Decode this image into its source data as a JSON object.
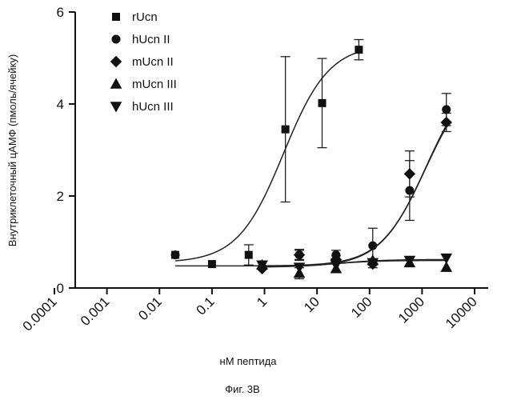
{
  "chart_data": {
    "type": "scatter",
    "xlabel": "нМ пептида",
    "ylabel": "Внутриклеточный цАМФ (пмоль/ячейку)",
    "caption": "Фиг. 3B",
    "x_scale": "log",
    "xlim": [
      0.0001,
      10000
    ],
    "ylim": [
      0,
      6
    ],
    "x_ticks": [
      "0.0001",
      "0.001",
      "0.01",
      "0.1",
      "1",
      "10",
      "100",
      "1000",
      "10000"
    ],
    "y_ticks": [
      "0",
      "2",
      "4",
      "6"
    ],
    "grid": false,
    "legend_position": "top-left",
    "series": [
      {
        "name": "rUcn",
        "marker": "square",
        "points": [
          {
            "x": 0.02,
            "y": 0.72,
            "err": 0
          },
          {
            "x": 0.1,
            "y": 0.52,
            "err": 0
          },
          {
            "x": 0.5,
            "y": 0.72,
            "err": 0.22
          },
          {
            "x": 2.5,
            "y": 3.45,
            "err": 1.58
          },
          {
            "x": 12.5,
            "y": 4.02,
            "err": 0.97
          },
          {
            "x": 62.5,
            "y": 5.18,
            "err": 0.22
          }
        ],
        "curve": {
          "bottom": 0.55,
          "top": 5.3,
          "ec50": 2.3,
          "hill": 1.0
        }
      },
      {
        "name": "hUcn II",
        "marker": "circle",
        "points": [
          {
            "x": 0.02,
            "y": 0.72,
            "err": 0
          },
          {
            "x": 0.9,
            "y": 0.45,
            "err": 0
          },
          {
            "x": 4.6,
            "y": 0.72,
            "err": 0.1
          },
          {
            "x": 23,
            "y": 0.72,
            "err": 0.1
          },
          {
            "x": 115,
            "y": 0.92,
            "err": 0.38
          },
          {
            "x": 580,
            "y": 2.12,
            "err": 0.65
          },
          {
            "x": 2900,
            "y": 3.88,
            "err": 0.35
          }
        ],
        "curve": {
          "bottom": 0.48,
          "top": 4.8,
          "ec50": 1200,
          "hill": 1.0
        }
      },
      {
        "name": "mUcn II",
        "marker": "diamond",
        "points": [
          {
            "x": 0.9,
            "y": 0.42,
            "err": 0
          },
          {
            "x": 4.6,
            "y": 0.72,
            "err": 0.12
          },
          {
            "x": 23,
            "y": 0.62,
            "err": 0.08
          },
          {
            "x": 115,
            "y": 0.52,
            "err": 0.08
          },
          {
            "x": 580,
            "y": 2.48,
            "err": 0.5
          },
          {
            "x": 2900,
            "y": 3.6,
            "err": 0.2
          }
        ],
        "curve": {
          "bottom": 0.46,
          "top": 4.7,
          "ec50": 1150,
          "hill": 1.0
        }
      },
      {
        "name": "mUcn III",
        "marker": "triangle-up",
        "points": [
          {
            "x": 0.9,
            "y": 0.5,
            "err": 0
          },
          {
            "x": 4.6,
            "y": 0.32,
            "err": 0.12
          },
          {
            "x": 23,
            "y": 0.42,
            "err": 0
          },
          {
            "x": 115,
            "y": 0.6,
            "err": 0
          },
          {
            "x": 580,
            "y": 0.55,
            "err": 0
          },
          {
            "x": 2900,
            "y": 0.45,
            "err": 0
          }
        ],
        "curve": {
          "bottom": 0.45,
          "top": 0.6,
          "ec50": 20,
          "hill": 1.0
        }
      },
      {
        "name": "hUcn III",
        "marker": "triangle-down",
        "points": [
          {
            "x": 0.9,
            "y": 0.5,
            "err": 0
          },
          {
            "x": 4.6,
            "y": 0.45,
            "err": 0
          },
          {
            "x": 23,
            "y": 0.5,
            "err": 0
          },
          {
            "x": 115,
            "y": 0.55,
            "err": 0
          },
          {
            "x": 580,
            "y": 0.6,
            "err": 0
          },
          {
            "x": 2900,
            "y": 0.65,
            "err": 0
          }
        ],
        "curve": {
          "bottom": 0.47,
          "top": 0.62,
          "ec50": 30,
          "hill": 1.0
        }
      }
    ]
  }
}
